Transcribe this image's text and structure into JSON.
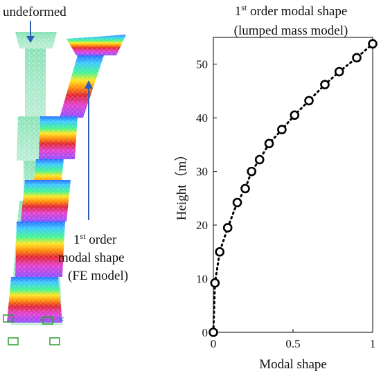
{
  "fe_panel": {
    "label_undeformed": "undeformed",
    "label_mode_sup": "st",
    "label_mode_line1_num": "1",
    "label_mode_line1_rest": " order",
    "label_mode_line2": "modal shape",
    "label_mode_line3": "(FE model)"
  },
  "chart_data": {
    "type": "line",
    "title_num": "1",
    "title_sup": "st",
    "title_line1_rest": " order modal shape",
    "title_line2": "(lumped mass model)",
    "xlabel": "Modal shape",
    "ylabel": "Height（m）",
    "xlim": [
      0,
      1
    ],
    "ylim": [
      0,
      55
    ],
    "xticks": [
      "0",
      "0.5",
      "1"
    ],
    "yticks": [
      "0",
      "10",
      "20",
      "30",
      "40",
      "50"
    ],
    "marker": "circle",
    "line_style": "dotted",
    "series": [
      {
        "x": [
          0.0,
          0.01,
          0.04,
          0.09,
          0.15,
          0.2,
          0.24,
          0.29,
          0.35,
          0.43,
          0.51,
          0.6,
          0.7,
          0.79,
          0.9,
          1.0
        ],
        "y": [
          0.0,
          9.2,
          15.0,
          19.5,
          24.2,
          26.8,
          30.0,
          32.2,
          35.2,
          37.8,
          40.5,
          43.2,
          46.2,
          48.6,
          51.2,
          53.8
        ]
      }
    ]
  }
}
